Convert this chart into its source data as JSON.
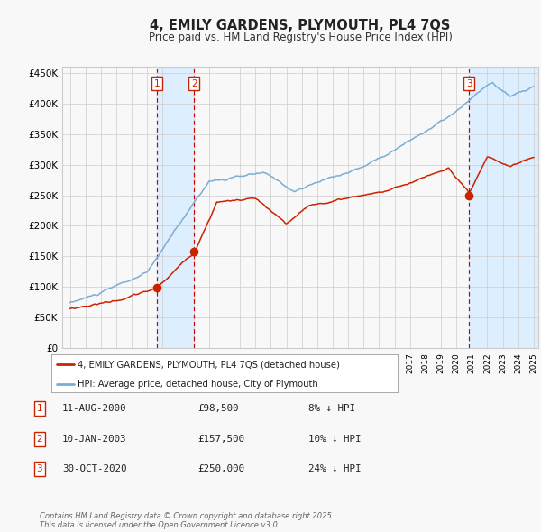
{
  "title": "4, EMILY GARDENS, PLYMOUTH, PL4 7QS",
  "subtitle": "Price paid vs. HM Land Registry's House Price Index (HPI)",
  "hpi_label": "HPI: Average price, detached house, City of Plymouth",
  "property_label": "4, EMILY GARDENS, PLYMOUTH, PL4 7QS (detached house)",
  "sale_dates_display": [
    "11-AUG-2000",
    "10-JAN-2003",
    "30-OCT-2020"
  ],
  "sale_prices": [
    98500,
    157500,
    250000
  ],
  "sale_years": [
    2000.61,
    2003.03,
    2020.83
  ],
  "sale_labels": [
    "1",
    "2",
    "3"
  ],
  "year_start": 1995,
  "year_end": 2025,
  "ylim": [
    0,
    460000
  ],
  "yticks": [
    0,
    50000,
    100000,
    150000,
    200000,
    250000,
    300000,
    350000,
    400000,
    450000
  ],
  "ytick_labels": [
    "£0",
    "£50K",
    "£100K",
    "£150K",
    "£200K",
    "£250K",
    "£300K",
    "£350K",
    "£400K",
    "£450K"
  ],
  "hpi_color": "#7aadd4",
  "property_color": "#cc2200",
  "sale_dot_color": "#cc2200",
  "vline_color": "#cc0000",
  "shade_color": "#ddeeff",
  "background_color": "#f8f8f8",
  "grid_color": "#cccccc",
  "label_box_color": "#cc2200",
  "footnote": "Contains HM Land Registry data © Crown copyright and database right 2025.\nThis data is licensed under the Open Government Licence v3.0.",
  "table_rows": [
    {
      "label": "1",
      "date": "11-AUG-2000",
      "price": "£98,500",
      "info": "8% ↓ HPI"
    },
    {
      "label": "2",
      "date": "10-JAN-2003",
      "price": "£157,500",
      "info": "10% ↓ HPI"
    },
    {
      "label": "3",
      "date": "30-OCT-2020",
      "price": "£250,000",
      "info": "24% ↓ HPI"
    }
  ]
}
